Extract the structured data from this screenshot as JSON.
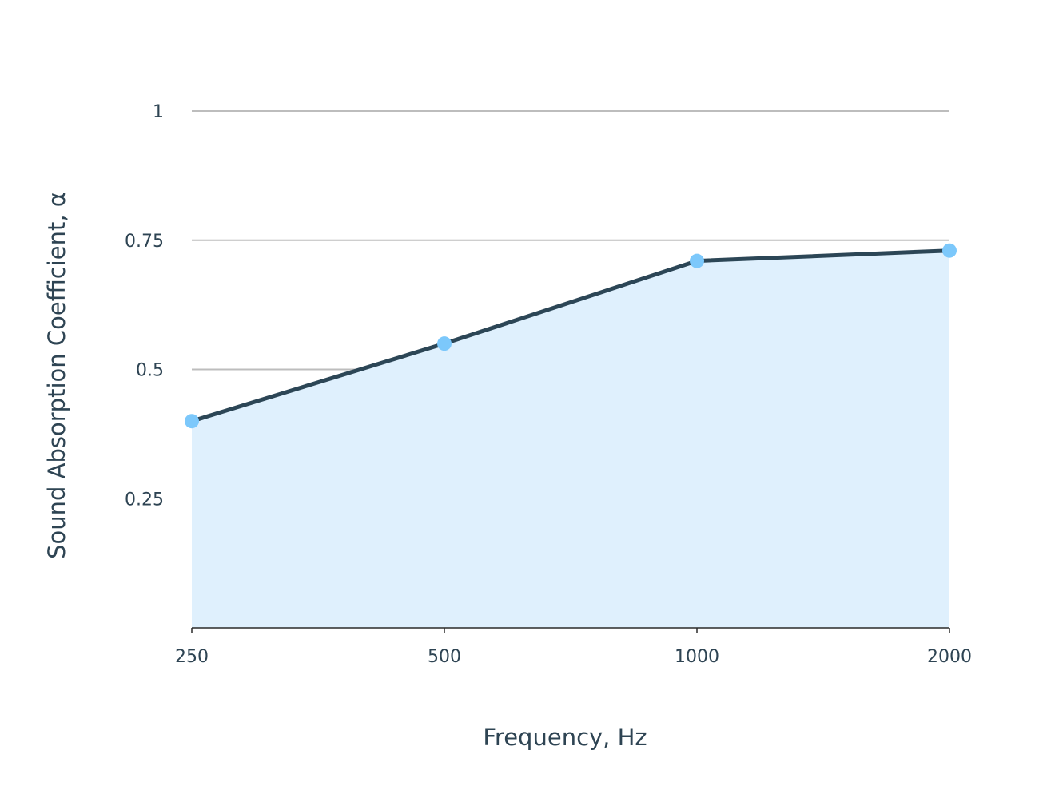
{
  "chart_data": {
    "type": "area",
    "x": [
      "250",
      "500",
      "1000",
      "2000"
    ],
    "series": [
      {
        "values": [
          0.4,
          0.55,
          0.71,
          0.73
        ]
      }
    ],
    "xlabel": "Frequency, Hz",
    "ylabel": "Sound Absorption Coefficient, α",
    "ylim": [
      0,
      1
    ],
    "yticks": [
      {
        "value": 0.25,
        "label": "0.25"
      },
      {
        "value": 0.5,
        "label": "0.5"
      },
      {
        "value": 0.75,
        "label": "0.75"
      },
      {
        "value": 1,
        "label": "1"
      }
    ],
    "grid": true,
    "legend": "none",
    "colors": {
      "line": "#2c4656",
      "marker": "#7cc8fb",
      "fill": "#dff0fd"
    }
  }
}
